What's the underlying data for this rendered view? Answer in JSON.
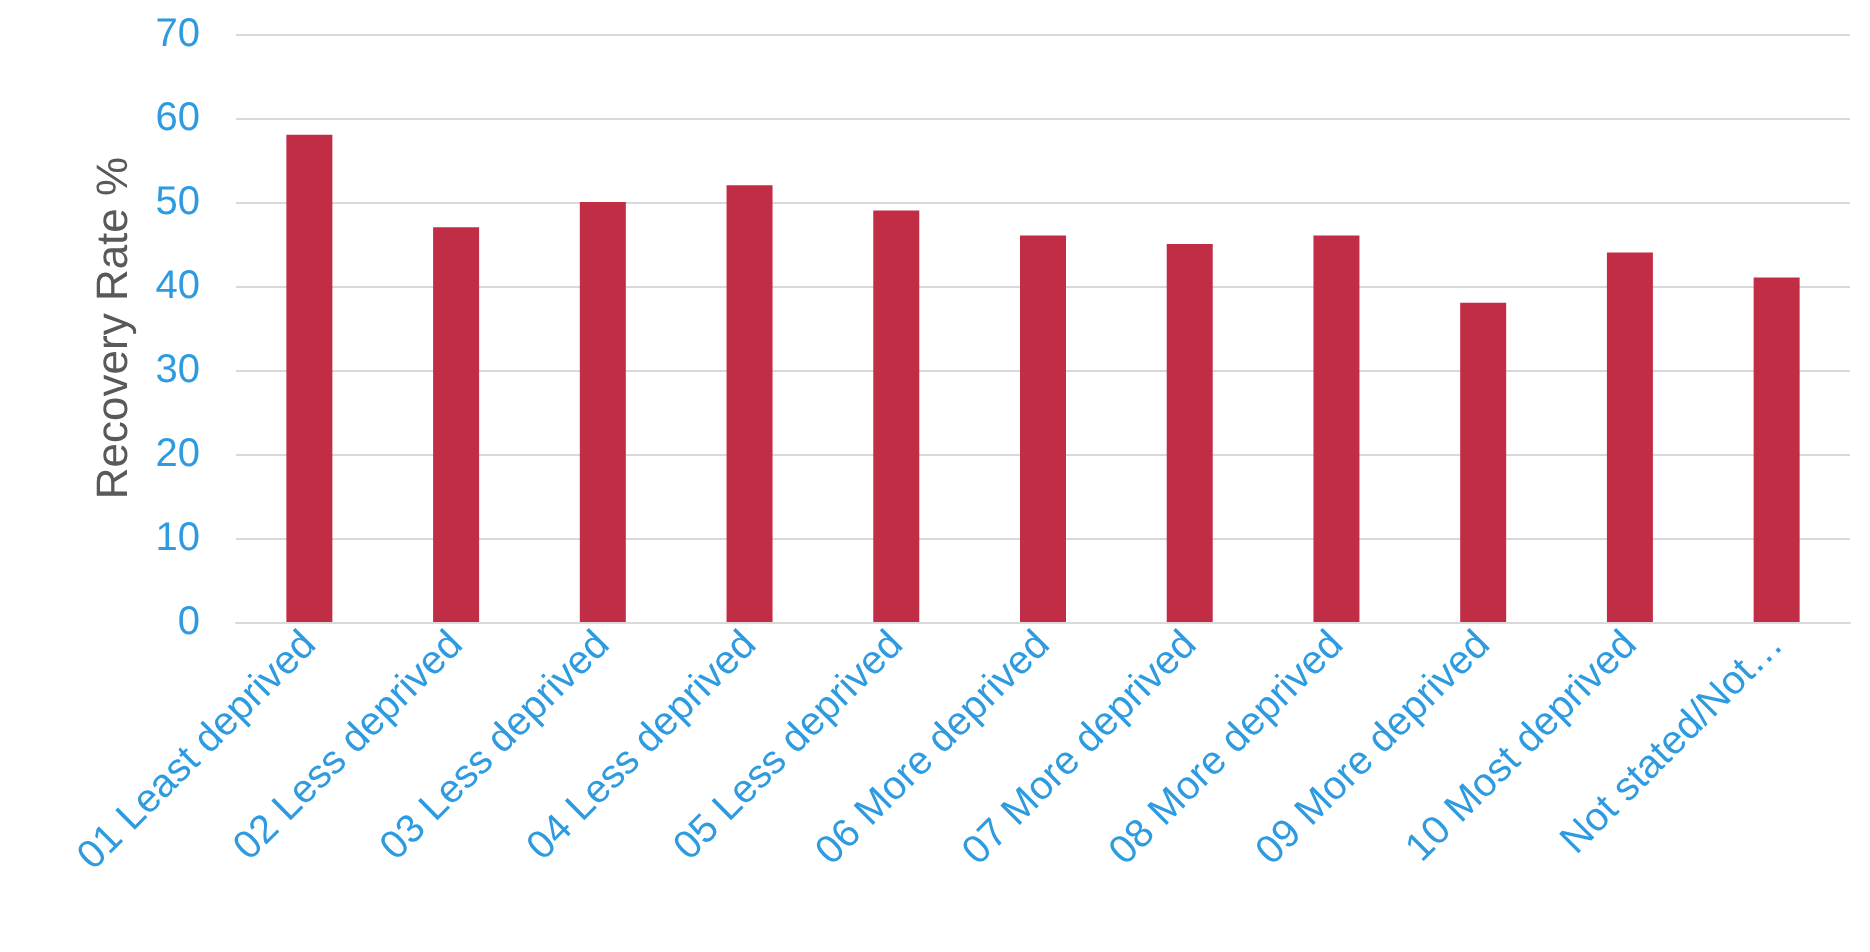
{
  "chart_data": {
    "type": "bar",
    "ylabel": "Recovery Rate %",
    "categories": [
      "01 Least deprived",
      "02 Less deprived",
      "03 Less deprived",
      "04 Less deprived",
      "05 Less deprived",
      "06 More deprived",
      "07 More deprived",
      "08 More deprived",
      "09 More deprived",
      "10 Most deprived",
      "Not stated/Not…"
    ],
    "values": [
      58,
      47,
      50,
      52,
      49,
      46,
      45,
      46,
      38,
      44,
      41
    ],
    "color": "#c12d44",
    "ylim": [
      0,
      70
    ],
    "yticks": [
      0,
      10,
      20,
      30,
      40,
      50,
      60,
      70
    ],
    "grid": "y"
  }
}
